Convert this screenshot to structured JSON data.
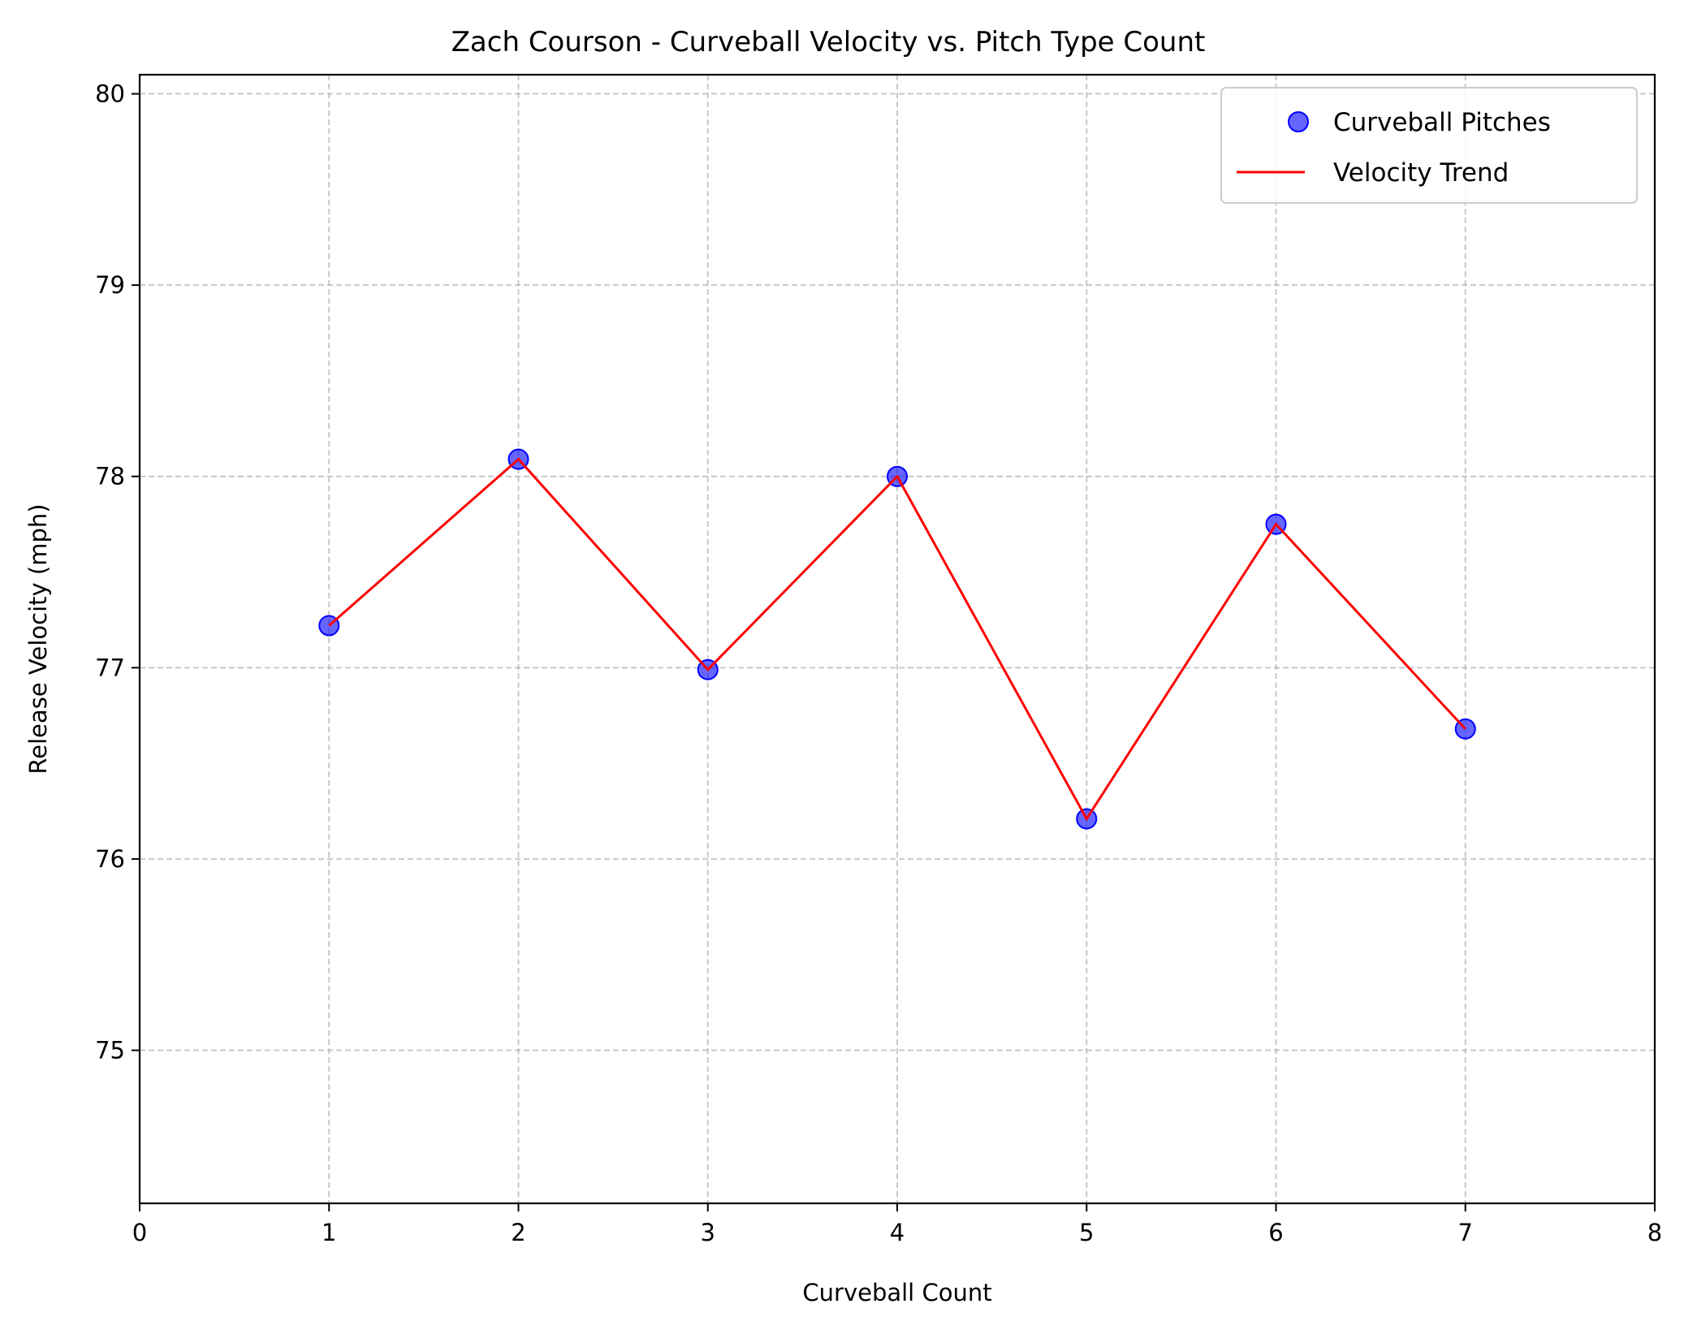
{
  "chart_data": {
    "type": "scatter",
    "title": "Zach Courson - Curveball Velocity vs. Pitch Type Count",
    "xlabel": "Curveball Count",
    "ylabel": "Release Velocity (mph)",
    "xlim": [
      0,
      8
    ],
    "ylim": [
      74.2,
      80.1
    ],
    "xticks": [
      0,
      1,
      2,
      3,
      4,
      5,
      6,
      7,
      8
    ],
    "yticks": [
      75,
      76,
      77,
      78,
      79,
      80
    ],
    "grid": true,
    "legend_position": "top-right",
    "series": [
      {
        "name": "Curveball Pitches",
        "kind": "scatter",
        "color": "#0000ff",
        "x": [
          1,
          2,
          3,
          4,
          5,
          6,
          7
        ],
        "y": [
          77.22,
          78.09,
          76.99,
          78.0,
          76.21,
          77.75,
          76.68
        ]
      },
      {
        "name": "Velocity Trend",
        "kind": "line",
        "color": "#ff0000",
        "x": [
          1,
          2,
          3,
          4,
          5,
          6,
          7
        ],
        "y": [
          77.22,
          78.09,
          76.99,
          78.0,
          76.21,
          77.75,
          76.68
        ]
      }
    ]
  }
}
